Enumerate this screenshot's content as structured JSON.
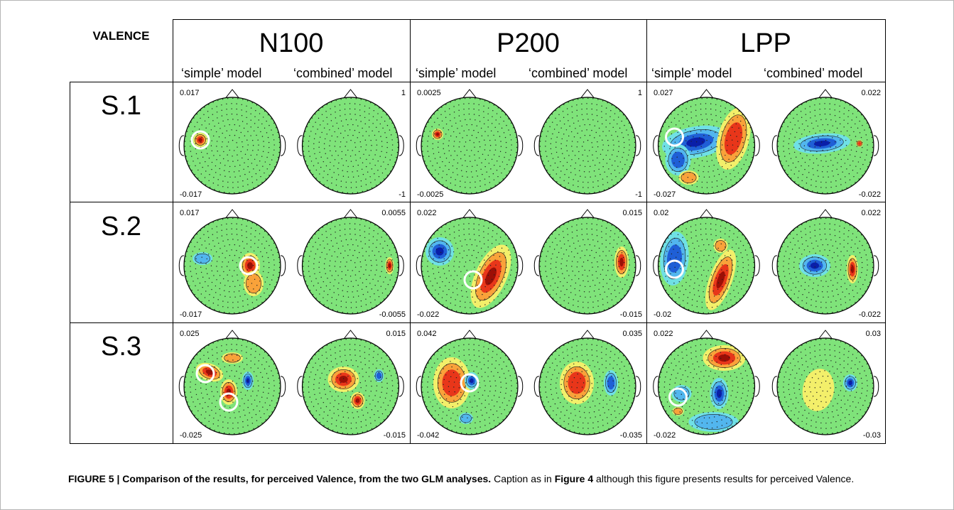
{
  "corner_label": "VALENCE",
  "columns": [
    {
      "title": "N100",
      "simple": "‘simple’ model",
      "combined": "‘combined’ model"
    },
    {
      "title": "P200",
      "simple": "‘simple’ model",
      "combined": "‘combined’ model"
    },
    {
      "title": "LPP",
      "simple": "‘simple’ model",
      "combined": "‘combined’ model"
    }
  ],
  "rows": [
    {
      "label": "S.1",
      "panels": [
        {
          "max": "0.017",
          "min": "-0.017"
        },
        {
          "max": "1",
          "min": "-1"
        },
        {
          "max": "0.0025",
          "min": "-0.0025"
        },
        {
          "max": "1",
          "min": "-1"
        },
        {
          "max": "0.027",
          "min": "-0.027"
        },
        {
          "max": "0.022",
          "min": "-0.022"
        }
      ]
    },
    {
      "label": "S.2",
      "panels": [
        {
          "max": "0.017",
          "min": "-0.017"
        },
        {
          "max": "0.0055",
          "min": "-0.0055"
        },
        {
          "max": "0.022",
          "min": "-0.022"
        },
        {
          "max": "0.015",
          "min": "-0.015"
        },
        {
          "max": "0.02",
          "min": "-0.02"
        },
        {
          "max": "0.022",
          "min": "-0.022"
        }
      ]
    },
    {
      "label": "S.3",
      "panels": [
        {
          "max": "0.025",
          "min": "-0.025"
        },
        {
          "max": "0.015",
          "min": "-0.015"
        },
        {
          "max": "0.042",
          "min": "-0.042"
        },
        {
          "max": "0.035",
          "min": "-0.035"
        },
        {
          "max": "0.022",
          "min": "-0.022"
        },
        {
          "max": "0.03",
          "min": "-0.03"
        }
      ]
    }
  ],
  "colors": {
    "map_background": "#7fe37a",
    "positive_strong": "#9c0f06",
    "positive": "#e8361a",
    "positive_weak": "#f9a23a",
    "positive_faint": "#f3ef6a",
    "negative_strong": "#0a1fa8",
    "negative": "#1f5fd6",
    "negative_weak": "#52b6ee",
    "negative_faint": "#6fe0e6",
    "highlight_circle": "#ffffff"
  },
  "caption": {
    "figure_label": "FIGURE 5 | Comparison of the results, for perceived Valence, from the two GLM analyses.",
    "text_1": " Caption as in ",
    "figure_ref": "Figure 4",
    "text_2": " although this figure presents results for perceived Valence."
  }
}
